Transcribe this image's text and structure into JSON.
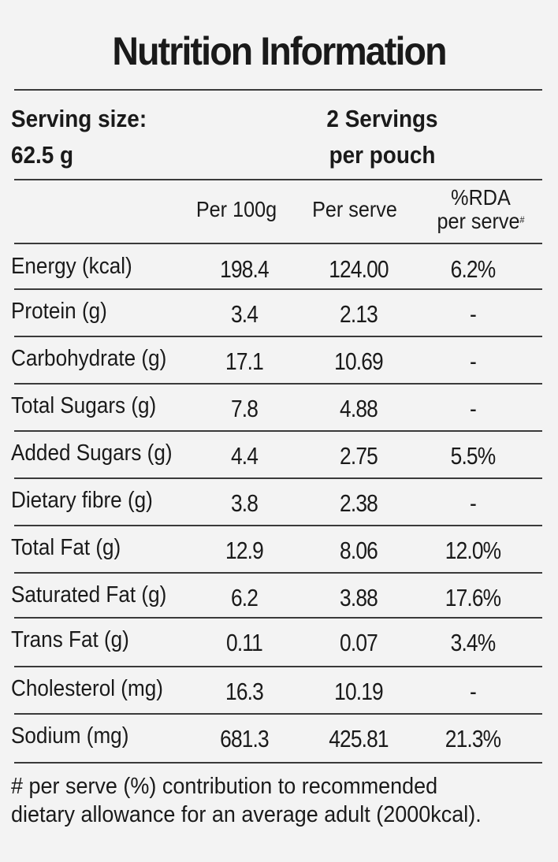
{
  "title": "Nutrition Information",
  "serving": {
    "size_label": "Serving size:",
    "size_value": "62.5 g",
    "servings_line1": "2 Servings",
    "servings_line2": "per pouch"
  },
  "columns": {
    "per100": "Per 100g",
    "perServe": "Per serve",
    "rda_line1": "%RDA",
    "rda_line2": "per serve",
    "rda_mark": "#"
  },
  "rows": [
    {
      "label": "Energy (kcal)",
      "per100": "198.4",
      "perServe": "124.00",
      "rda": "6.2%"
    },
    {
      "label": "Protein (g)",
      "per100": "3.4",
      "perServe": "2.13",
      "rda": "-"
    },
    {
      "label": "Carbohydrate (g)",
      "per100": "17.1",
      "perServe": "10.69",
      "rda": "-"
    },
    {
      "label": "Total Sugars (g)",
      "per100": "7.8",
      "perServe": "4.88",
      "rda": "-"
    },
    {
      "label": "Added Sugars (g)",
      "per100": "4.4",
      "perServe": "2.75",
      "rda": "5.5%"
    },
    {
      "label": "Dietary fibre (g)",
      "per100": "3.8",
      "perServe": "2.38",
      "rda": "-"
    },
    {
      "label": "Total Fat (g)",
      "per100": "12.9",
      "perServe": "8.06",
      "rda": "12.0%"
    },
    {
      "label": "Saturated Fat (g)",
      "per100": "6.2",
      "perServe": "3.88",
      "rda": "17.6%"
    },
    {
      "label": "Trans Fat (g)",
      "per100": "0.11",
      "perServe": "0.07",
      "rda": "3.4%"
    },
    {
      "label": "Cholesterol (mg)",
      "per100": "16.3",
      "perServe": "10.19",
      "rda": "-"
    },
    {
      "label": "Sodium (mg)",
      "per100": "681.3",
      "perServe": "425.81",
      "rda": "21.3%"
    }
  ],
  "footnote": {
    "line1": "# per serve (%) contribution to recommended",
    "line2": "dietary allowance for an average adult (2000kcal)."
  }
}
